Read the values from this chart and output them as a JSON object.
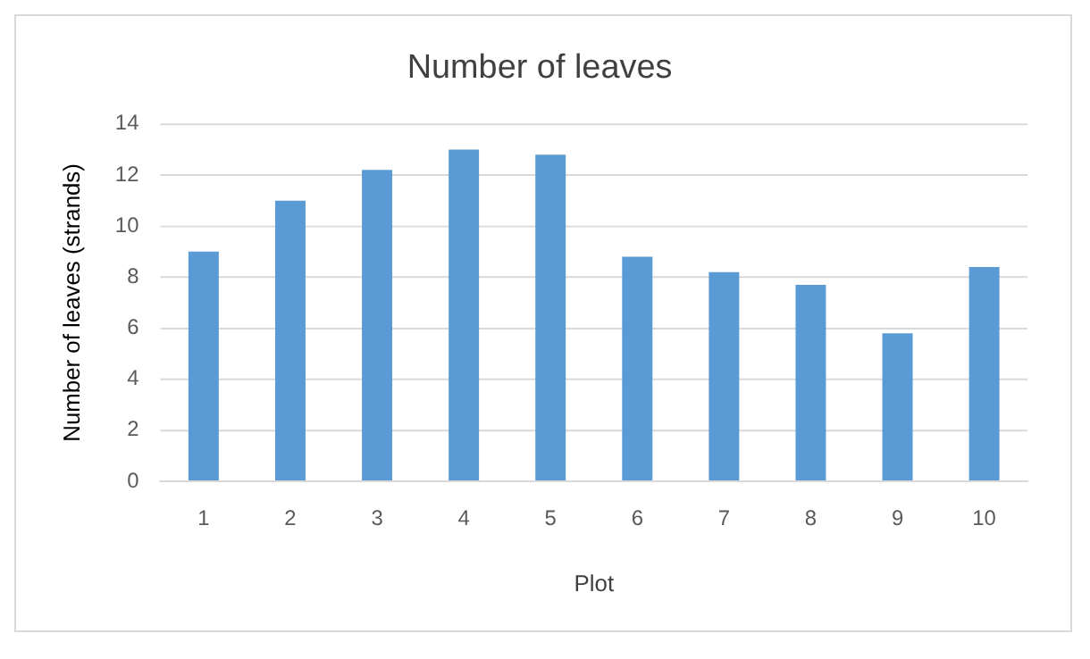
{
  "chart_data": {
    "type": "bar",
    "title": "Number of leaves",
    "xlabel": "Plot",
    "ylabel": "Number of leaves (strands)",
    "categories": [
      "1",
      "2",
      "3",
      "4",
      "5",
      "6",
      "7",
      "8",
      "9",
      "10"
    ],
    "values": [
      9.0,
      11.0,
      12.2,
      13.0,
      12.8,
      8.8,
      8.2,
      7.7,
      5.8,
      8.4
    ],
    "color": "#5b9bd5",
    "ylim": [
      0,
      14
    ],
    "yticks": [
      0,
      2,
      4,
      6,
      8,
      10,
      12,
      14
    ],
    "grid": "y",
    "legend": false
  }
}
